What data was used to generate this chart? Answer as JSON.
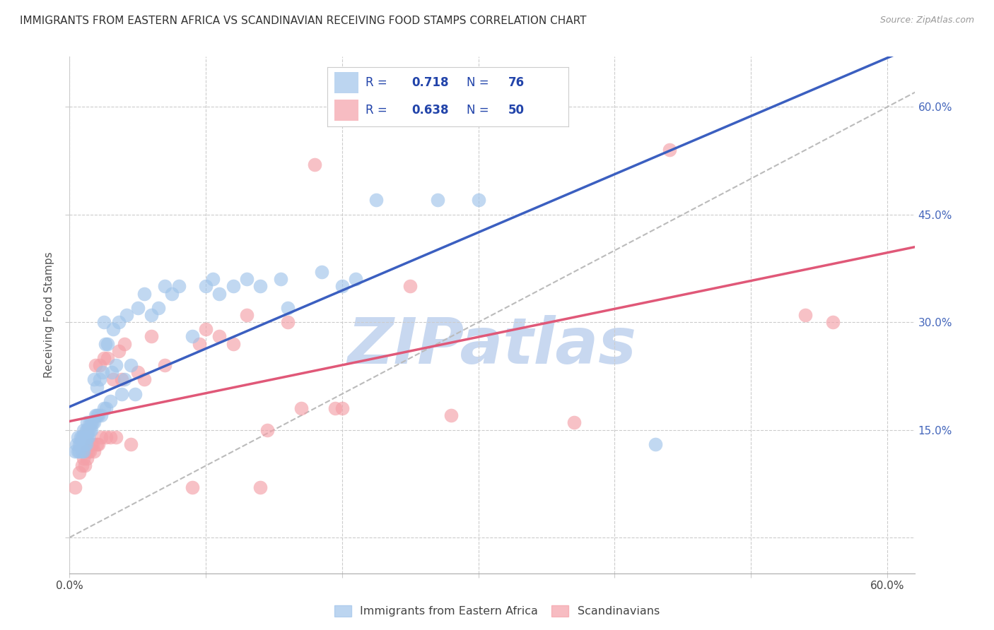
{
  "title": "IMMIGRANTS FROM EASTERN AFRICA VS SCANDINAVIAN RECEIVING FOOD STAMPS CORRELATION CHART",
  "source": "Source: ZipAtlas.com",
  "ylabel": "Receiving Food Stamps",
  "xlim": [
    0.0,
    0.62
  ],
  "ylim": [
    -0.05,
    0.67
  ],
  "y_tick_positions": [
    0.0,
    0.15,
    0.3,
    0.45,
    0.6
  ],
  "y_tick_labels_right": [
    "",
    "15.0%",
    "30.0%",
    "45.0%",
    "60.0%"
  ],
  "x_tick_positions": [
    0.0,
    0.1,
    0.2,
    0.3,
    0.4,
    0.5,
    0.6
  ],
  "x_tick_labels": [
    "0.0%",
    "",
    "",
    "",
    "",
    "",
    "60.0%"
  ],
  "blue_R": "0.718",
  "blue_N": "76",
  "pink_R": "0.638",
  "pink_N": "50",
  "blue_color": "#A0C4EA",
  "pink_color": "#F4A0A8",
  "blue_line_color": "#3B5FC0",
  "pink_line_color": "#E05878",
  "ref_line_color": "#BBBBBB",
  "tick_label_color": "#4466BB",
  "legend_text_color": "#2244AA",
  "watermark": "ZIPatlas",
  "watermark_color": "#C8D8F0",
  "legend_label_blue": "Immigrants from Eastern Africa",
  "legend_label_pink": "Scandinavians",
  "blue_scatter_x": [
    0.004,
    0.005,
    0.006,
    0.006,
    0.007,
    0.007,
    0.008,
    0.008,
    0.009,
    0.009,
    0.01,
    0.01,
    0.01,
    0.01,
    0.011,
    0.011,
    0.012,
    0.012,
    0.012,
    0.013,
    0.013,
    0.013,
    0.014,
    0.014,
    0.015,
    0.015,
    0.016,
    0.016,
    0.017,
    0.018,
    0.018,
    0.019,
    0.02,
    0.02,
    0.021,
    0.022,
    0.023,
    0.024,
    0.025,
    0.025,
    0.026,
    0.027,
    0.028,
    0.03,
    0.031,
    0.032,
    0.034,
    0.036,
    0.038,
    0.04,
    0.042,
    0.045,
    0.048,
    0.05,
    0.055,
    0.06,
    0.065,
    0.07,
    0.075,
    0.08,
    0.09,
    0.1,
    0.105,
    0.11,
    0.12,
    0.13,
    0.14,
    0.155,
    0.16,
    0.185,
    0.2,
    0.21,
    0.225,
    0.27,
    0.3,
    0.43
  ],
  "blue_scatter_y": [
    0.12,
    0.13,
    0.12,
    0.14,
    0.12,
    0.13,
    0.13,
    0.14,
    0.12,
    0.14,
    0.12,
    0.13,
    0.14,
    0.15,
    0.13,
    0.14,
    0.13,
    0.14,
    0.15,
    0.14,
    0.15,
    0.16,
    0.14,
    0.15,
    0.15,
    0.16,
    0.15,
    0.16,
    0.16,
    0.16,
    0.22,
    0.17,
    0.17,
    0.21,
    0.17,
    0.22,
    0.17,
    0.23,
    0.18,
    0.3,
    0.27,
    0.18,
    0.27,
    0.19,
    0.23,
    0.29,
    0.24,
    0.3,
    0.2,
    0.22,
    0.31,
    0.24,
    0.2,
    0.32,
    0.34,
    0.31,
    0.32,
    0.35,
    0.34,
    0.35,
    0.28,
    0.35,
    0.36,
    0.34,
    0.35,
    0.36,
    0.35,
    0.36,
    0.32,
    0.37,
    0.35,
    0.36,
    0.47,
    0.47,
    0.47,
    0.13
  ],
  "pink_scatter_x": [
    0.004,
    0.007,
    0.009,
    0.01,
    0.011,
    0.012,
    0.013,
    0.014,
    0.015,
    0.016,
    0.017,
    0.018,
    0.019,
    0.02,
    0.021,
    0.022,
    0.023,
    0.025,
    0.027,
    0.028,
    0.03,
    0.032,
    0.034,
    0.036,
    0.038,
    0.04,
    0.045,
    0.05,
    0.055,
    0.06,
    0.07,
    0.09,
    0.095,
    0.1,
    0.11,
    0.12,
    0.13,
    0.14,
    0.145,
    0.16,
    0.17,
    0.18,
    0.195,
    0.2,
    0.25,
    0.28,
    0.37,
    0.44,
    0.54,
    0.56
  ],
  "pink_scatter_y": [
    0.07,
    0.09,
    0.1,
    0.11,
    0.1,
    0.12,
    0.11,
    0.12,
    0.12,
    0.13,
    0.13,
    0.12,
    0.24,
    0.13,
    0.13,
    0.24,
    0.14,
    0.25,
    0.14,
    0.25,
    0.14,
    0.22,
    0.14,
    0.26,
    0.22,
    0.27,
    0.13,
    0.23,
    0.22,
    0.28,
    0.24,
    0.07,
    0.27,
    0.29,
    0.28,
    0.27,
    0.31,
    0.07,
    0.15,
    0.3,
    0.18,
    0.52,
    0.18,
    0.18,
    0.35,
    0.17,
    0.16,
    0.54,
    0.31,
    0.3
  ]
}
